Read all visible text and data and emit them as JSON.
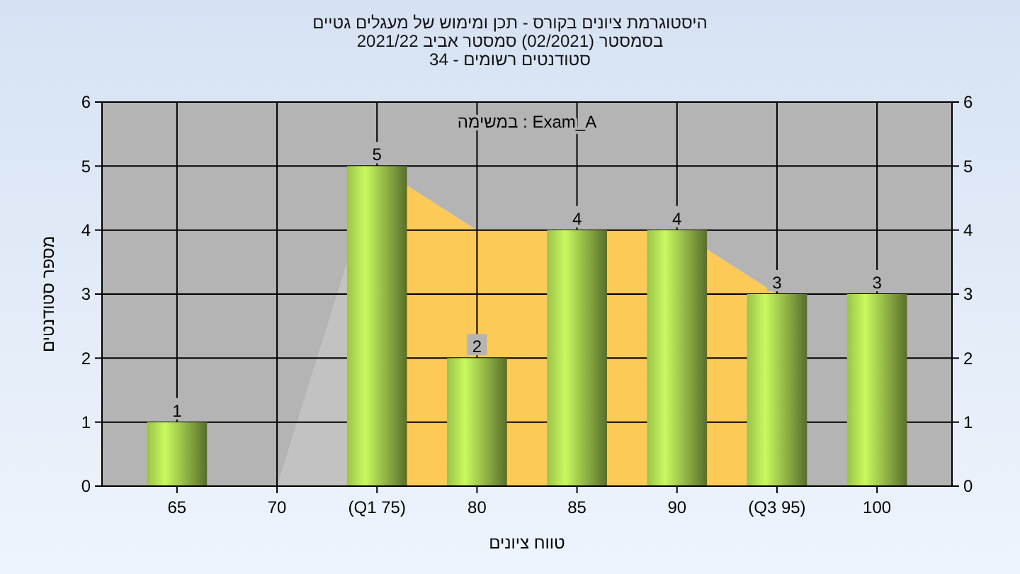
{
  "chart_data": {
    "type": "bar",
    "title": "היסטוגרמת ציונים בקורס - תכן ומימוש של מעגלים גטיים",
    "subtitle": "בסמסטר (02/2021) סמסטר אביב 2021/22\nסטודנטים רשומים - 34",
    "xlabel": "טווח ציונים",
    "ylabel": "מספר סטודנטים",
    "annotations": [
      "במשימה : Exam_A"
    ],
    "categories": [
      "65",
      "70",
      "(Q1 75)",
      "80",
      "85",
      "90",
      "(Q3 95)",
      "100"
    ],
    "series": [
      {
        "type": "area",
        "color": "#c2c2c2",
        "values": [
          0,
          0,
          5,
          4,
          null,
          4,
          3,
          null
        ]
      },
      {
        "type": "area",
        "color": "#fdca58",
        "values": [
          null,
          null,
          5,
          4,
          null,
          4,
          3,
          null
        ]
      },
      {
        "color": "#9cc24a",
        "values": [
          1,
          0,
          5,
          2,
          4,
          4,
          3,
          3
        ],
        "value_labels": [
          "1",
          null,
          "5",
          "2",
          "4",
          "4",
          "3",
          "3"
        ]
      }
    ],
    "ylim": [
      0,
      6
    ],
    "yticks": [
      0,
      1,
      2,
      3,
      4,
      5,
      6
    ],
    "y2lim": [
      0,
      6
    ],
    "y2ticks": [
      0,
      1,
      2,
      3,
      4,
      5,
      6
    ],
    "grid": true
  }
}
